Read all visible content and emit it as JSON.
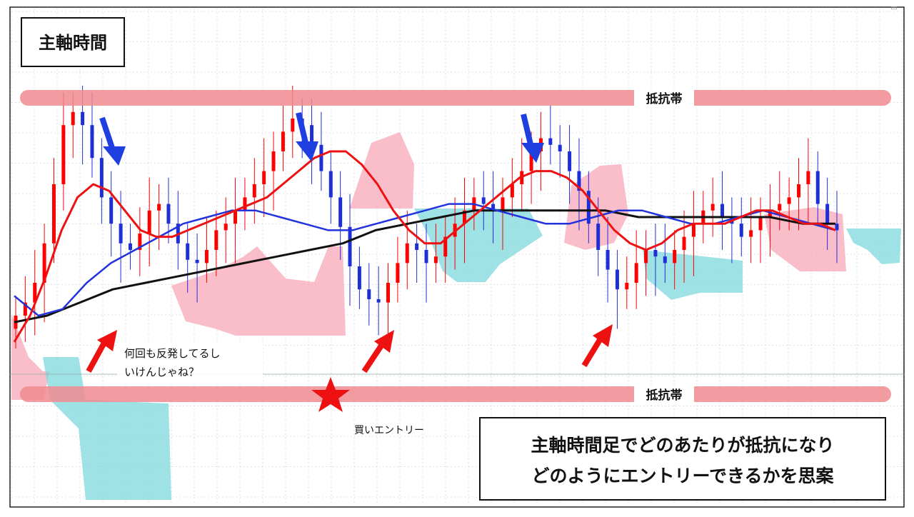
{
  "title_box": {
    "label": "主軸時間"
  },
  "resistance_top": {
    "label": "抵抗帯"
  },
  "resistance_bottom": {
    "label": "抵抗帯"
  },
  "annotation_rebound": {
    "line1": "何回も反発してるし",
    "line2": "いけんじゃね？"
  },
  "buy_entry": {
    "label": "買いエントリー"
  },
  "summary_box": {
    "line1": "主軸時間足でどのあたりが抵抗になり",
    "line2": "どのようにエントリーできるかを思案"
  },
  "colors": {
    "resistance_band": "#f08a8f",
    "bull_candle": "#ff0000",
    "bear_candle": "#1f2fd6",
    "ma_fast": "#ee1111",
    "ma_mid": "#2233dd",
    "ma_slow": "#111111",
    "cloud_bull": "#f7a8b8",
    "cloud_bear": "#7fd8dd",
    "arrow_up": "#ee1111",
    "arrow_down": "#1f3fe0",
    "star": "#ee1111"
  },
  "chart_data": {
    "type": "candlestick",
    "grid": true,
    "legend": "none",
    "close_series": [
      30,
      34,
      40,
      52,
      70,
      88,
      92,
      88,
      78,
      66,
      58,
      52,
      50,
      55,
      62,
      64,
      58,
      52,
      47,
      46,
      50,
      56,
      58,
      62,
      66,
      70,
      74,
      80,
      86,
      90,
      88,
      82,
      74,
      66,
      57,
      45,
      38,
      35,
      34,
      40,
      46,
      52,
      50,
      46,
      48,
      54,
      58,
      62,
      66,
      64,
      62,
      66,
      70,
      74,
      80,
      84,
      82,
      80,
      74,
      68,
      58,
      50,
      44,
      38,
      40,
      46,
      50,
      48,
      46,
      50,
      54,
      58,
      62,
      64,
      60,
      58,
      54,
      56,
      60,
      62,
      64,
      66,
      70,
      74,
      64,
      58,
      56
    ],
    "ma_fast": [
      22,
      30,
      42,
      56,
      66,
      70,
      68,
      62,
      56,
      54,
      54,
      56,
      58,
      60,
      62,
      64,
      66,
      70,
      74,
      78,
      80,
      80,
      76,
      70,
      62,
      56,
      52,
      52,
      56,
      60,
      64,
      68,
      72,
      74,
      74,
      72,
      68,
      62,
      56,
      52,
      50,
      52,
      56,
      58,
      58,
      58,
      60,
      62,
      62,
      60,
      58,
      58,
      56
    ],
    "ma_mid": [
      36,
      30,
      32,
      40,
      46,
      50,
      54,
      58,
      60,
      62,
      62,
      60,
      58,
      56,
      56,
      58,
      60,
      62,
      64,
      64,
      62,
      60,
      58,
      58,
      60,
      62,
      62,
      60,
      58,
      58,
      60,
      62,
      60,
      58,
      56
    ],
    "ma_slow": [
      28,
      30,
      34,
      38,
      40,
      42,
      44,
      46,
      48,
      50,
      52,
      56,
      58,
      60,
      62,
      62,
      62,
      62,
      62,
      60,
      60,
      60,
      60,
      60,
      58,
      58
    ],
    "resistance_levels": [
      "抵抗帯",
      "抵抗帯"
    ]
  }
}
